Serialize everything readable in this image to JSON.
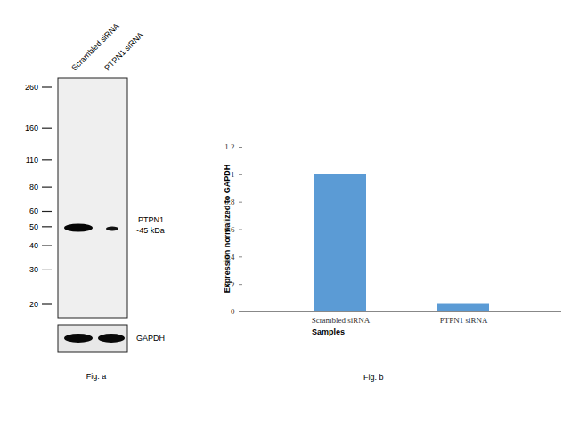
{
  "chart_data": {
    "type": "bar",
    "categories": [
      "Scrambled siRNA",
      "PTPN1 siRNA"
    ],
    "values": [
      1,
      0.055
    ],
    "color": "#5b9bd5",
    "xlabel": "Samples",
    "ylabel": "Expression  normalized to GAPDH",
    "caption": "Fig. b",
    "ylim": [
      0,
      1.2
    ],
    "yticks": [
      0,
      0.2,
      0.4,
      0.6,
      0.8,
      1,
      1.2
    ],
    "grid": false
  },
  "blot": {
    "lanes": [
      "Scrambled siRNA",
      "PTPN1 siRNA"
    ],
    "markers": [
      260,
      160,
      110,
      80,
      60,
      50,
      40,
      30,
      20
    ],
    "band": {
      "label": "PTPN1",
      "size": "~45 kDa"
    },
    "loading_control": "GAPDH",
    "caption": "Fig. a"
  }
}
